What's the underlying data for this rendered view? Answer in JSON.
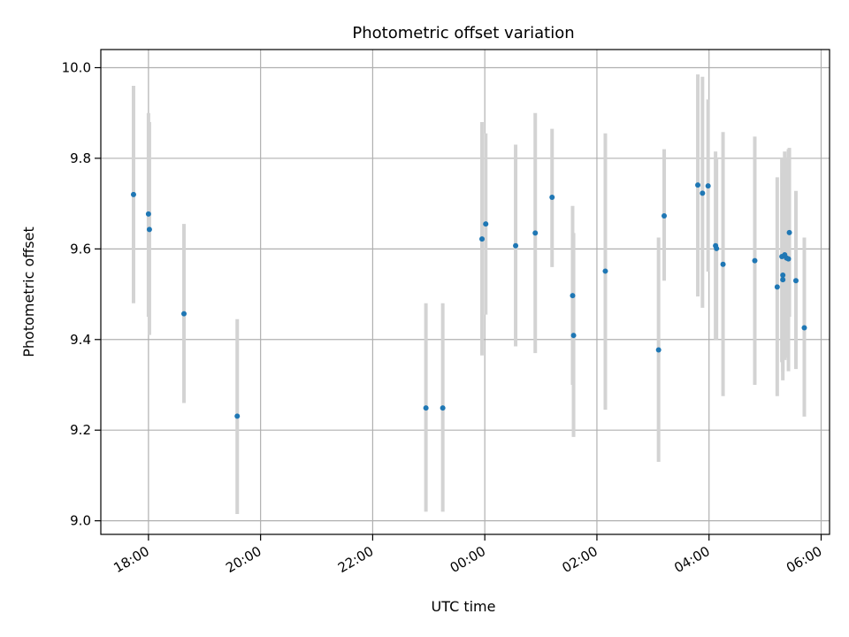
{
  "chart_data": {
    "type": "scatter",
    "title": "Photometric offset variation",
    "xlabel": "UTC time",
    "ylabel": "Photometric offset",
    "x_axis_type": "time",
    "xlim": [
      "17:09",
      "06:09"
    ],
    "ylim": [
      8.97,
      10.04
    ],
    "x_ticks": [
      "18:00",
      "20:00",
      "22:00",
      "00:00",
      "02:00",
      "04:00",
      "06:00"
    ],
    "y_ticks": [
      "9.0",
      "9.2",
      "9.4",
      "9.6",
      "9.8",
      "10.0"
    ],
    "grid": true,
    "point_color": "#1f77b4",
    "errorbar_color": "#d3d3d3",
    "points": [
      {
        "time": "17:44",
        "y": 9.72,
        "low": 9.48,
        "high": 9.96
      },
      {
        "time": "18:00",
        "y": 9.677,
        "low": 9.45,
        "high": 9.9
      },
      {
        "time": "18:01",
        "y": 9.643,
        "low": 9.41,
        "high": 9.88
      },
      {
        "time": "18:38",
        "y": 9.457,
        "low": 9.26,
        "high": 9.655
      },
      {
        "time": "19:35",
        "y": 9.231,
        "low": 9.015,
        "high": 9.445
      },
      {
        "time": "22:57",
        "y": 9.249,
        "low": 9.02,
        "high": 9.48
      },
      {
        "time": "23:15",
        "y": 9.249,
        "low": 9.02,
        "high": 9.48
      },
      {
        "time": "23:57",
        "y": 9.622,
        "low": 9.365,
        "high": 9.88
      },
      {
        "time": "00:01",
        "y": 9.655,
        "low": 9.455,
        "high": 9.855
      },
      {
        "time": "00:33",
        "y": 9.607,
        "low": 9.385,
        "high": 9.83
      },
      {
        "time": "00:54",
        "y": 9.635,
        "low": 9.37,
        "high": 9.9
      },
      {
        "time": "01:12",
        "y": 9.714,
        "low": 9.56,
        "high": 9.865
      },
      {
        "time": "01:34",
        "y": 9.497,
        "low": 9.3,
        "high": 9.695
      },
      {
        "time": "01:35",
        "y": 9.409,
        "low": 9.185,
        "high": 9.635
      },
      {
        "time": "02:09",
        "y": 9.551,
        "low": 9.245,
        "high": 9.855
      },
      {
        "time": "03:06",
        "y": 9.377,
        "low": 9.13,
        "high": 9.625
      },
      {
        "time": "03:12",
        "y": 9.673,
        "low": 9.53,
        "high": 9.82
      },
      {
        "time": "03:48",
        "y": 9.741,
        "low": 9.495,
        "high": 9.985
      },
      {
        "time": "03:53",
        "y": 9.723,
        "low": 9.47,
        "high": 9.98
      },
      {
        "time": "03:59",
        "y": 9.739,
        "low": 9.55,
        "high": 9.93
      },
      {
        "time": "04:07",
        "y": 9.607,
        "low": 9.4,
        "high": 9.815
      },
      {
        "time": "04:08",
        "y": 9.601,
        "low": 9.4,
        "high": 9.8
      },
      {
        "time": "04:15",
        "y": 9.566,
        "low": 9.275,
        "high": 9.858
      },
      {
        "time": "04:49",
        "y": 9.574,
        "low": 9.3,
        "high": 9.848
      },
      {
        "time": "05:13",
        "y": 9.516,
        "low": 9.275,
        "high": 9.758
      },
      {
        "time": "05:18",
        "y": 9.583,
        "low": 9.35,
        "high": 9.8
      },
      {
        "time": "05:19",
        "y": 9.542,
        "low": 9.31,
        "high": 9.77
      },
      {
        "time": "05:19",
        "y": 9.532,
        "low": 9.33,
        "high": 9.74
      },
      {
        "time": "05:21",
        "y": 9.587,
        "low": 9.355,
        "high": 9.815
      },
      {
        "time": "05:23",
        "y": 9.58,
        "low": 9.36,
        "high": 9.8
      },
      {
        "time": "05:25",
        "y": 9.578,
        "low": 9.33,
        "high": 9.82
      },
      {
        "time": "05:26",
        "y": 9.636,
        "low": 9.45,
        "high": 9.823
      },
      {
        "time": "05:33",
        "y": 9.53,
        "low": 9.335,
        "high": 9.728
      },
      {
        "time": "05:42",
        "y": 9.426,
        "low": 9.23,
        "high": 9.625
      }
    ]
  }
}
